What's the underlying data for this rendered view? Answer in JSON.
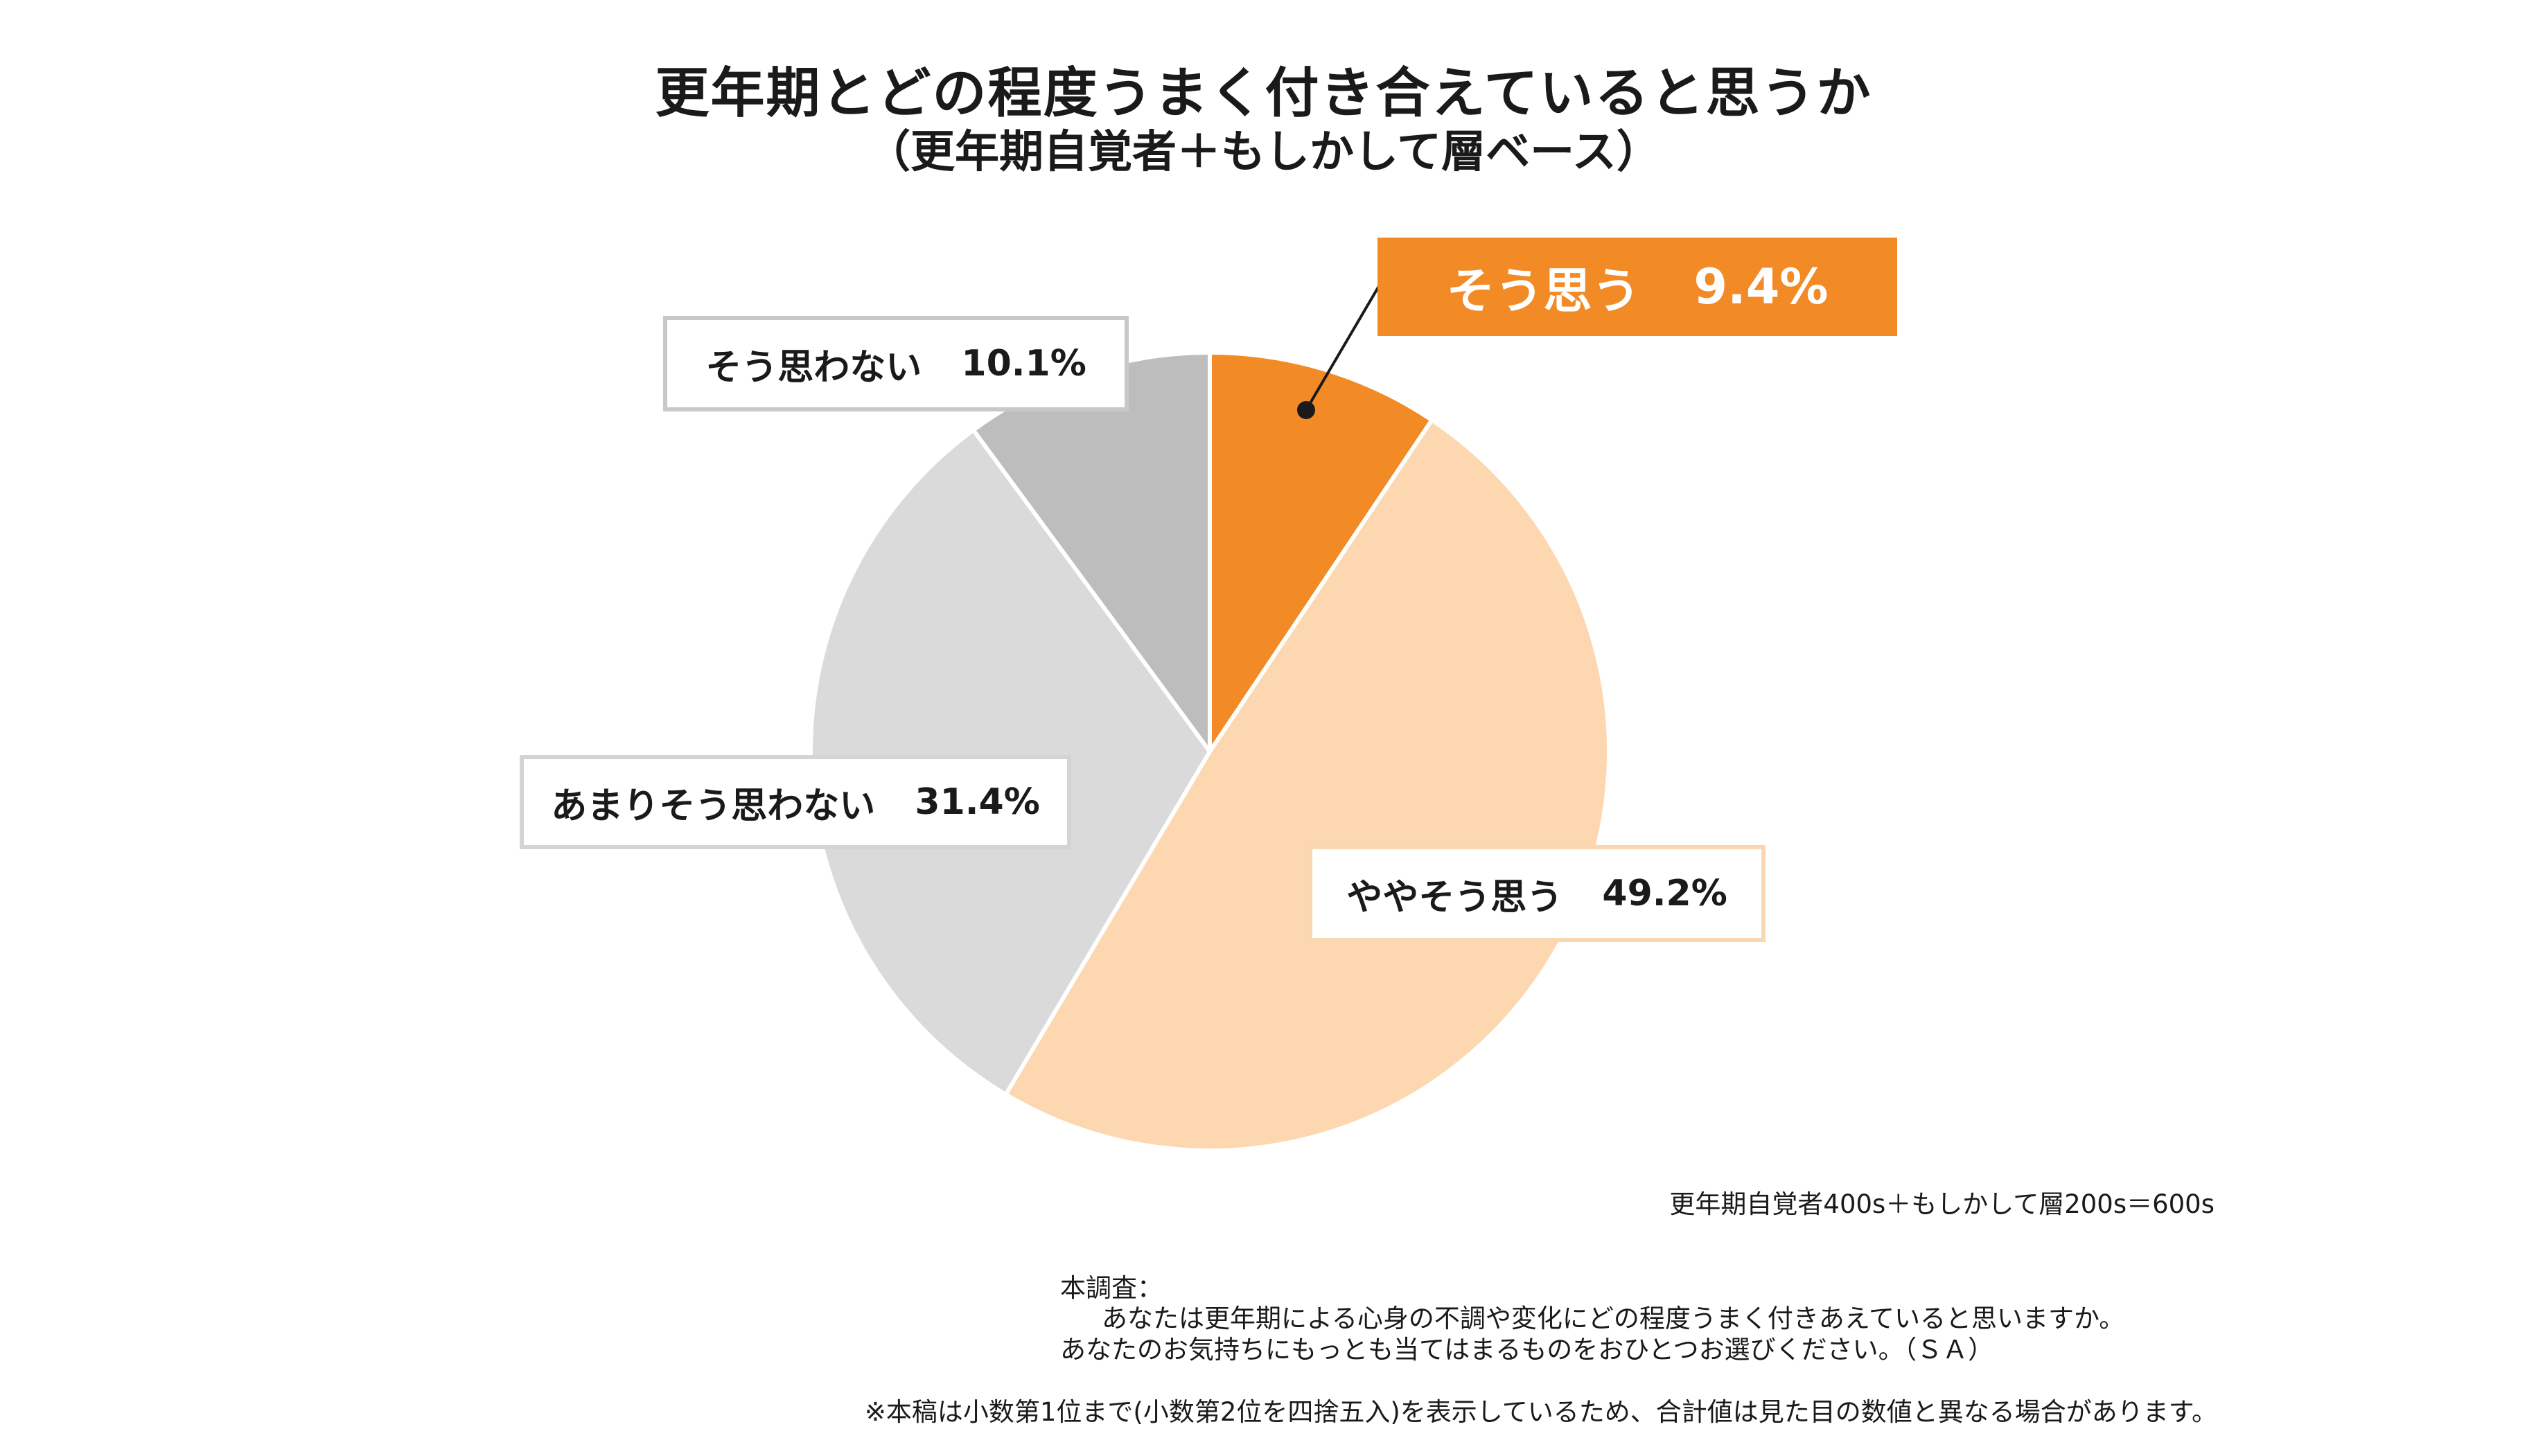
{
  "title": "更年期とどの程度うまく付き合えていると思うか",
  "subtitle": "（更年期自覚者＋もしかして層ベース）",
  "chart_data": {
    "type": "pie",
    "categories": [
      "そう思う",
      "ややそう思う",
      "あまりそう思わない",
      "そう思わない"
    ],
    "values": [
      9.4,
      49.2,
      31.4,
      10.1
    ],
    "unit": "%",
    "value_labels": [
      "9.4%",
      "49.2%",
      "31.4%",
      "10.1%"
    ],
    "colors": [
      "#f28a25",
      "#fdd7b0",
      "#dadada",
      "#bdbdbd"
    ],
    "start": "12 o'clock",
    "direction": "clockwise"
  },
  "base_note": "更年期自覚者400s＋もしかして層200s＝600s",
  "survey": {
    "heading": "本調査：",
    "line1": "あなたは更年期による心身の不調や変化にどの程度うまく付きあえていると思いますか。",
    "line2": "あなたのお気持ちにもっとも当てはまるものをおひとつお選びください。（ＳＡ）"
  },
  "footnote": "※本稿は小数第1位まで(小数第2位を四捨五入)を表示しているため、合計値は見た目の数値と異なる場合があります。"
}
